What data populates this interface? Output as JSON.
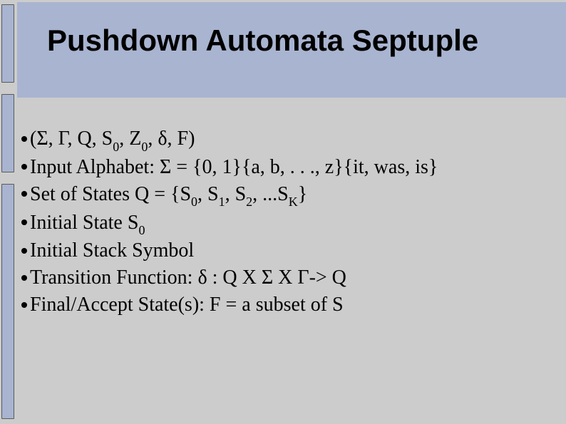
{
  "title": "Pushdown Automata Septuple",
  "bullets": {
    "b1": {
      "text": "(Σ, Γ, Q, S",
      "sub1": "0",
      "mid1": ", Z",
      "sub2": "0",
      "tail": ", δ, F)"
    },
    "b2": {
      "text": "Input Alphabet: Σ = {0, 1}{a, b, . . ., z}{it, was, is}"
    },
    "b3": {
      "pre": "Set of States Q = {S",
      "s0": "0",
      "c1": ", S",
      "s1": "1",
      "c2": ", S",
      "s2": "2",
      "c3": ", ...S",
      "sk": "K",
      "tail": "}"
    },
    "b4": {
      "pre": "Initial State S",
      "s0": "0"
    },
    "b5": {
      "text": "Initial Stack Symbol"
    },
    "b6": {
      "text": "Transition Function: δ : Q X Σ X Γ-> Q"
    },
    "b7": {
      "text": "Final/Accept State(s): F = a subset of S"
    }
  },
  "colors": {
    "background": "#cccccc",
    "band": "#a8b4d0",
    "text": "#000000"
  }
}
